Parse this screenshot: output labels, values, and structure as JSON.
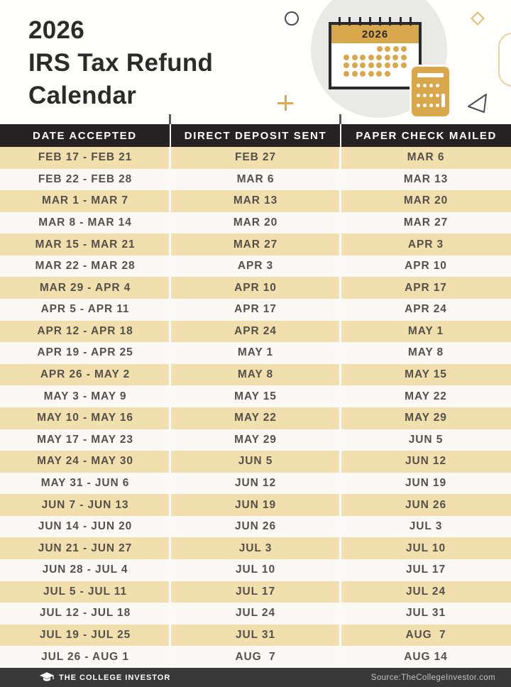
{
  "header": {
    "title": {
      "line1": "2026",
      "line2": "IRS Tax Refund",
      "line3": "Calendar"
    },
    "illustration": {
      "calendar_year": "2026"
    }
  },
  "table": {
    "columns": [
      "DATE ACCEPTED",
      "DIRECT DEPOSIT SENT",
      "PAPER CHECK MAILED"
    ],
    "rows": [
      [
        "FEB 17 - FEB 21",
        "FEB 27",
        "MAR 6"
      ],
      [
        "FEB 22 - FEB 28",
        "MAR 6",
        "MAR 13"
      ],
      [
        "MAR 1 - MAR 7",
        "MAR 13",
        "MAR 20"
      ],
      [
        "MAR 8 - MAR 14",
        "MAR 20",
        "MAR 27"
      ],
      [
        "MAR 15 - MAR 21",
        "MAR 27",
        "APR 3"
      ],
      [
        "MAR 22 - MAR 28",
        "APR 3",
        "APR 10"
      ],
      [
        "MAR 29 - APR 4",
        "APR 10",
        "APR 17"
      ],
      [
        "APR 5 - APR 11",
        "APR 17",
        "APR 24"
      ],
      [
        "APR 12 - APR 18",
        "APR 24",
        "MAY 1"
      ],
      [
        "APR 19 - APR 25",
        "MAY 1",
        "MAY 8"
      ],
      [
        "APR 26 - MAY 2",
        "MAY 8",
        "MAY 15"
      ],
      [
        "MAY 3 - MAY 9",
        "MAY 15",
        "MAY 22"
      ],
      [
        "MAY 10 - MAY 16",
        "MAY 22",
        "MAY 29"
      ],
      [
        "MAY 17 - MAY 23",
        "MAY 29",
        "JUN 5"
      ],
      [
        "MAY 24 - MAY 30",
        "JUN 5",
        "JUN 12"
      ],
      [
        "MAY 31 - JUN 6",
        "JUN 12",
        "JUN 19"
      ],
      [
        "JUN 7 - JUN 13",
        "JUN 19",
        "JUN 26"
      ],
      [
        "JUN 14 - JUN 20",
        "JUN 26",
        "JUL 3"
      ],
      [
        "JUN 21 - JUN 27",
        "JUL 3",
        "JUL 10"
      ],
      [
        "JUN 28 - JUL 4",
        "JUL 10",
        "JUL 17"
      ],
      [
        "JUL 5 - JUL 11",
        "JUL 17",
        "JUL 24"
      ],
      [
        "JUL 12 - JUL 18",
        "JUL 24",
        "JUL 31"
      ],
      [
        "JUL 19 - JUL 25",
        "JUL 31",
        "AUG  7"
      ],
      [
        "JUL 26 - AUG 1",
        "AUG  7",
        "AUG 14"
      ]
    ]
  },
  "footer": {
    "brand": "THE COLLEGE INVESTOR",
    "source": "Source:TheCollegeInvestor.com"
  },
  "colors": {
    "gold": "#D9A84C",
    "gold_outline": "#E2BA70",
    "row_beige": "#F2DFAE",
    "row_white": "#FBF9F6",
    "header_bar": "#262223",
    "footer_bar": "#393939",
    "row_text": "#55504A",
    "title_text": "#2D2B2A"
  }
}
